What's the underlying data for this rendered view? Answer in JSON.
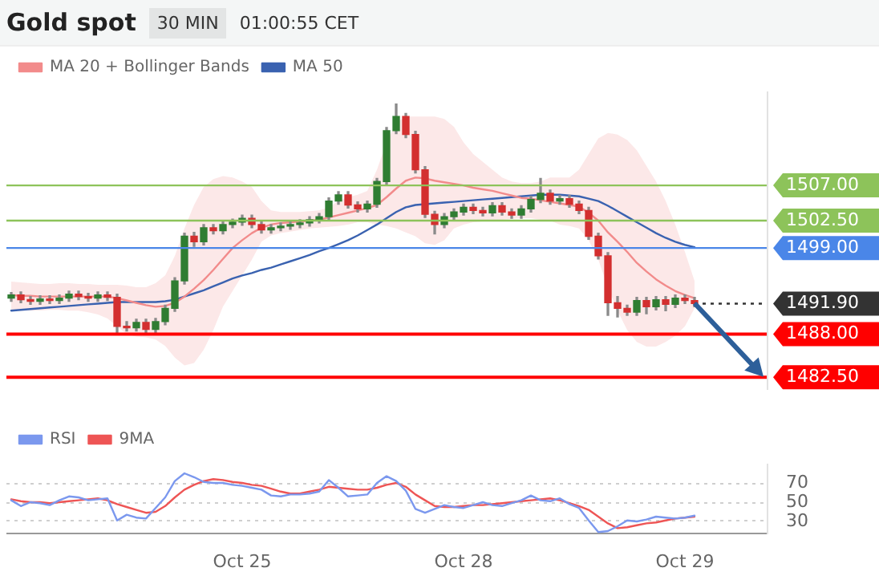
{
  "chart_data": [
    {
      "type": "candlestick",
      "title": "Gold spot",
      "subtitle": "30 MIN",
      "annotations": [
        "01:00:55 CET"
      ],
      "categories": [
        null,
        null,
        null,
        null,
        null,
        null,
        null,
        null,
        null,
        null,
        null,
        null,
        null,
        null,
        null,
        null,
        null,
        null,
        null,
        null,
        null,
        null,
        null,
        null,
        null,
        null,
        null,
        null,
        null,
        null,
        null,
        null,
        null,
        null,
        null,
        null,
        null,
        null,
        null,
        null,
        null,
        null,
        null,
        null,
        null,
        null,
        null,
        null,
        null,
        null,
        null,
        null,
        null,
        null,
        null,
        null,
        null,
        null,
        null,
        null,
        null,
        null,
        null,
        null,
        null,
        null,
        null,
        null,
        null,
        null,
        null,
        null,
        null,
        null,
        null,
        null,
        null,
        null,
        null
      ],
      "ohlc": [
        [
          1492.6,
          1493.3,
          1492.2,
          1493.0
        ],
        [
          1493.0,
          1493.4,
          1492.0,
          1492.4
        ],
        [
          1492.4,
          1492.8,
          1491.8,
          1492.2
        ],
        [
          1492.2,
          1492.9,
          1491.8,
          1492.5
        ],
        [
          1492.5,
          1492.9,
          1491.9,
          1492.3
        ],
        [
          1492.3,
          1493.0,
          1491.9,
          1492.6
        ],
        [
          1492.6,
          1493.5,
          1492.2,
          1493.1
        ],
        [
          1493.1,
          1493.5,
          1492.4,
          1492.8
        ],
        [
          1492.8,
          1493.2,
          1492.2,
          1492.6
        ],
        [
          1492.6,
          1493.4,
          1492.2,
          1493.0
        ],
        [
          1493.0,
          1493.4,
          1492.3,
          1492.7
        ],
        [
          1492.7,
          1493.1,
          1488.2,
          1489.0
        ],
        [
          1489.0,
          1489.6,
          1488.4,
          1488.8
        ],
        [
          1488.8,
          1489.9,
          1488.4,
          1489.5
        ],
        [
          1489.5,
          1489.9,
          1488.0,
          1488.6
        ],
        [
          1488.6,
          1490.0,
          1488.2,
          1489.6
        ],
        [
          1489.6,
          1491.7,
          1489.2,
          1491.3
        ],
        [
          1491.3,
          1495.2,
          1490.9,
          1494.8
        ],
        [
          1494.8,
          1500.9,
          1494.4,
          1500.5
        ],
        [
          1500.5,
          1501.0,
          1499.2,
          1499.8
        ],
        [
          1499.8,
          1502.0,
          1499.4,
          1501.6
        ],
        [
          1501.6,
          1502.0,
          1500.8,
          1501.2
        ],
        [
          1501.2,
          1502.4,
          1500.8,
          1502.0
        ],
        [
          1502.0,
          1502.7,
          1501.6,
          1502.3
        ],
        [
          1502.3,
          1503.2,
          1501.9,
          1502.8
        ],
        [
          1502.8,
          1503.2,
          1501.6,
          1502.0
        ],
        [
          1502.0,
          1502.4,
          1500.9,
          1501.3
        ],
        [
          1501.3,
          1502.0,
          1500.9,
          1501.6
        ],
        [
          1501.6,
          1502.2,
          1501.2,
          1501.8
        ],
        [
          1501.8,
          1502.4,
          1501.4,
          1502.0
        ],
        [
          1502.0,
          1502.6,
          1501.6,
          1502.2
        ],
        [
          1502.2,
          1503.0,
          1501.8,
          1502.6
        ],
        [
          1502.6,
          1503.4,
          1502.2,
          1503.0
        ],
        [
          1503.0,
          1505.4,
          1502.6,
          1505.0
        ],
        [
          1505.0,
          1506.2,
          1504.6,
          1505.8
        ],
        [
          1505.8,
          1506.2,
          1504.1,
          1504.5
        ],
        [
          1504.5,
          1504.9,
          1503.6,
          1504.0
        ],
        [
          1504.0,
          1505.0,
          1503.6,
          1504.6
        ],
        [
          1504.6,
          1507.9,
          1504.2,
          1507.5
        ],
        [
          1507.5,
          1514.4,
          1507.1,
          1514.0
        ],
        [
          1514.0,
          1517.4,
          1513.6,
          1515.8
        ],
        [
          1515.8,
          1516.2,
          1513.1,
          1513.5
        ],
        [
          1513.5,
          1513.9,
          1508.6,
          1509.0
        ],
        [
          1509.0,
          1509.4,
          1502.9,
          1503.3
        ],
        [
          1503.3,
          1503.7,
          1500.8,
          1502.0
        ],
        [
          1502.0,
          1503.4,
          1501.6,
          1503.0
        ],
        [
          1503.0,
          1504.0,
          1502.6,
          1503.6
        ],
        [
          1503.6,
          1504.6,
          1503.2,
          1504.2
        ],
        [
          1504.2,
          1504.6,
          1503.4,
          1503.8
        ],
        [
          1503.8,
          1504.2,
          1503.1,
          1503.5
        ],
        [
          1503.5,
          1504.8,
          1503.1,
          1504.4
        ],
        [
          1504.4,
          1504.8,
          1503.2,
          1503.6
        ],
        [
          1503.6,
          1504.0,
          1502.8,
          1503.2
        ],
        [
          1503.2,
          1504.4,
          1502.8,
          1504.0
        ],
        [
          1504.0,
          1505.6,
          1503.6,
          1505.2
        ],
        [
          1505.2,
          1507.9,
          1504.8,
          1506.0
        ],
        [
          1506.0,
          1506.4,
          1504.6,
          1505.0
        ],
        [
          1505.0,
          1505.7,
          1504.6,
          1505.3
        ],
        [
          1505.3,
          1505.7,
          1504.2,
          1504.6
        ],
        [
          1504.6,
          1505.0,
          1503.4,
          1503.8
        ],
        [
          1503.8,
          1504.2,
          1500.1,
          1500.5
        ],
        [
          1500.5,
          1500.9,
          1497.6,
          1498.0
        ],
        [
          1498.0,
          1498.4,
          1490.4,
          1492.0
        ],
        [
          1492.0,
          1492.8,
          1490.2,
          1491.3
        ],
        [
          1491.3,
          1491.7,
          1490.4,
          1490.8
        ],
        [
          1490.8,
          1492.7,
          1490.4,
          1492.3
        ],
        [
          1492.3,
          1492.7,
          1490.6,
          1491.5
        ],
        [
          1491.5,
          1492.8,
          1491.1,
          1492.4
        ],
        [
          1492.4,
          1492.8,
          1491.0,
          1491.8
        ],
        [
          1491.8,
          1493.0,
          1491.4,
          1492.6
        ],
        [
          1492.6,
          1493.0,
          1491.9,
          1492.3
        ],
        [
          1492.3,
          1492.7,
          1491.5,
          1491.9
        ],
        null,
        null,
        null,
        null,
        null,
        null,
        null
      ],
      "series": [
        {
          "type": "line",
          "name": "MA 20 + Bollinger Bands",
          "color": "#f28b8b",
          "values": [
            1493.0,
            1492.9,
            1492.9,
            1492.8,
            1492.8,
            1492.8,
            1492.8,
            1492.8,
            1492.8,
            1492.8,
            1492.8,
            1492.6,
            1492.3,
            1492.0,
            1491.7,
            1491.5,
            1491.6,
            1492.0,
            1492.8,
            1493.8,
            1494.9,
            1496.2,
            1497.6,
            1499.0,
            1500.0,
            1500.9,
            1501.6,
            1502.0,
            1502.2,
            1502.3,
            1502.4,
            1502.5,
            1502.6,
            1502.9,
            1503.2,
            1503.5,
            1503.8,
            1504.1,
            1504.5,
            1505.5,
            1506.6,
            1507.6,
            1508.0,
            1507.9,
            1507.6,
            1507.4,
            1507.2,
            1507.0,
            1506.7,
            1506.5,
            1506.3,
            1506.0,
            1505.7,
            1505.4,
            1505.3,
            1505.1,
            1504.9,
            1504.7,
            1504.5,
            1504.3,
            1503.5,
            1502.5,
            1501.0,
            1499.8,
            1498.5,
            1497.1,
            1496.0,
            1495.0,
            1494.2,
            1493.5,
            1493.0,
            1492.6,
            null,
            null,
            null,
            null,
            null,
            null,
            null
          ],
          "upper": [
            1494.7,
            1494.6,
            1494.5,
            1494.4,
            1494.4,
            1494.5,
            1494.5,
            1494.4,
            1494.4,
            1494.3,
            1494.3,
            1494.3,
            1494.2,
            1494.0,
            1494.0,
            1494.5,
            1495.5,
            1498.0,
            1501.5,
            1504.5,
            1506.8,
            1507.8,
            1508.2,
            1508.0,
            1507.5,
            1506.8,
            1505.0,
            1503.8,
            1503.6,
            1503.6,
            1503.6,
            1503.7,
            1503.8,
            1504.2,
            1505.0,
            1505.5,
            1505.8,
            1506.3,
            1509.0,
            1512.5,
            1515.0,
            1515.8,
            1515.8,
            1515.8,
            1515.8,
            1515.5,
            1514.5,
            1512.5,
            1511.0,
            1510.0,
            1509.0,
            1508.0,
            1507.5,
            1507.3,
            1507.3,
            1507.5,
            1508.0,
            1508.0,
            1508.0,
            1509.0,
            1511.0,
            1513.0,
            1513.7,
            1513.5,
            1512.8,
            1511.5,
            1509.5,
            1507.5,
            1505.0,
            1502.0,
            1498.5,
            1494.8,
            null,
            null,
            null,
            null,
            null,
            null,
            null
          ],
          "lower": [
            1491.0,
            1491.0,
            1491.0,
            1491.0,
            1491.1,
            1491.1,
            1491.0,
            1491.0,
            1490.8,
            1490.5,
            1490.0,
            1489.0,
            1488.0,
            1487.7,
            1487.6,
            1487.3,
            1486.5,
            1485.0,
            1484.0,
            1484.3,
            1486.0,
            1488.5,
            1491.5,
            1493.5,
            1495.5,
            1497.5,
            1499.8,
            1500.6,
            1500.9,
            1501.1,
            1501.3,
            1501.5,
            1501.6,
            1501.7,
            1501.8,
            1502.0,
            1502.3,
            1502.3,
            1502.0,
            1501.8,
            1501.5,
            1501.0,
            1500.5,
            1499.6,
            1499.4,
            1500.0,
            1501.5,
            1502.0,
            1502.3,
            1502.4,
            1502.5,
            1502.6,
            1502.7,
            1502.8,
            1502.8,
            1502.6,
            1502.5,
            1502.0,
            1501.8,
            1501.5,
            1500.0,
            1497.5,
            1494.0,
            1491.0,
            1488.5,
            1487.0,
            1486.4,
            1486.4,
            1487.0,
            1487.8,
            1489.0,
            1491.3,
            null,
            null,
            null,
            null,
            null,
            null,
            null
          ]
        },
        {
          "type": "line",
          "name": "MA 50",
          "color": "#3a62b0",
          "values": [
            1491.0,
            1491.1,
            1491.2,
            1491.3,
            1491.4,
            1491.5,
            1491.6,
            1491.7,
            1491.8,
            1491.9,
            1492.0,
            1492.1,
            1492.1,
            1492.1,
            1492.1,
            1492.1,
            1492.2,
            1492.4,
            1492.8,
            1493.2,
            1493.6,
            1494.1,
            1494.6,
            1495.1,
            1495.5,
            1495.8,
            1496.2,
            1496.5,
            1496.9,
            1497.3,
            1497.7,
            1498.1,
            1498.6,
            1499.0,
            1499.5,
            1500.0,
            1500.6,
            1501.3,
            1502.0,
            1502.8,
            1503.6,
            1504.2,
            1504.5,
            1504.6,
            1504.7,
            1504.8,
            1504.9,
            1505.0,
            1505.1,
            1505.2,
            1505.3,
            1505.4,
            1505.5,
            1505.6,
            1505.7,
            1505.8,
            1505.8,
            1505.8,
            1505.7,
            1505.6,
            1505.3,
            1505.0,
            1504.4,
            1503.7,
            1503.0,
            1502.3,
            1501.6,
            1500.9,
            1500.3,
            1499.8,
            1499.4,
            1499.1,
            null,
            null,
            null,
            null,
            null,
            null,
            null
          ]
        }
      ],
      "ylim": [
        1481,
        1519
      ],
      "yticks": [
        {
          "value": 1507,
          "label": "1507.00"
        },
        {
          "value": 1502.5,
          "label": "1502.50"
        },
        {
          "value": 1499,
          "label": "1499.00"
        },
        {
          "value": 1491.9,
          "label": "1491.90"
        },
        {
          "value": 1488,
          "label": "1488.00"
        },
        {
          "value": 1482.5,
          "label": "1482.50"
        }
      ],
      "ref_lines": [
        {
          "axis": "y",
          "value": 1507,
          "color": "#8dc35a"
        },
        {
          "axis": "y",
          "value": 1502.5,
          "color": "#8dc35a"
        },
        {
          "axis": "y",
          "value": 1499,
          "color": "#4a86e8"
        },
        {
          "axis": "y",
          "value": 1491.9,
          "color": "#333333",
          "line_style": "dotted"
        },
        {
          "axis": "y",
          "value": 1488,
          "color": "#ff0000"
        },
        {
          "axis": "y",
          "value": 1482.5,
          "color": "#ff0000"
        }
      ],
      "legend": "top left",
      "tick_labels": "y",
      "grid": false
    },
    {
      "type": "line",
      "categories": [
        null,
        null,
        null,
        null,
        null,
        null,
        null,
        null,
        null,
        null,
        null,
        null,
        null,
        null,
        null,
        null,
        null,
        null,
        null,
        null,
        null,
        null,
        null,
        null,
        "Oct 25",
        null,
        null,
        null,
        null,
        null,
        null,
        null,
        null,
        null,
        null,
        null,
        null,
        null,
        null,
        null,
        null,
        null,
        null,
        null,
        null,
        null,
        null,
        "Oct 28",
        null,
        null,
        null,
        null,
        null,
        null,
        null,
        null,
        null,
        null,
        null,
        null,
        null,
        null,
        null,
        null,
        null,
        null,
        null,
        null,
        null,
        null,
        "Oct 29",
        null,
        null,
        null,
        null,
        null,
        null,
        null,
        null
      ],
      "series": [
        {
          "name": "RSI",
          "color": "#7b98ee",
          "values": [
            52,
            46,
            50,
            49,
            47,
            52,
            56,
            55,
            52,
            53,
            54,
            31,
            37,
            34,
            33,
            44,
            55,
            72,
            80,
            76,
            71,
            70,
            70,
            68,
            67,
            65,
            63,
            57,
            56,
            58,
            58,
            59,
            61,
            73,
            65,
            56,
            57,
            58,
            70,
            77,
            72,
            62,
            43,
            39,
            43,
            47,
            45,
            44,
            47,
            50,
            47,
            46,
            49,
            52,
            57,
            52,
            51,
            54,
            48,
            44,
            31,
            19,
            20,
            25,
            31,
            30,
            32,
            35,
            34,
            33,
            34,
            36,
            null,
            null,
            null,
            null,
            null,
            null,
            null
          ]
        },
        {
          "name": "9MA",
          "color": "#ee5555",
          "values": [
            53,
            51,
            50,
            50,
            49,
            50,
            51,
            52,
            53,
            54,
            52,
            48,
            45,
            42,
            39,
            40,
            46,
            55,
            63,
            68,
            72,
            74,
            73,
            71,
            70,
            68,
            67,
            64,
            61,
            59,
            59,
            61,
            63,
            66,
            65,
            64,
            63,
            63,
            65,
            68,
            70,
            66,
            58,
            52,
            46,
            45,
            45,
            46,
            47,
            47,
            48,
            49,
            50,
            51,
            52,
            53,
            54,
            52,
            49,
            46,
            42,
            35,
            28,
            23,
            24,
            26,
            28,
            29,
            31,
            33,
            34,
            35,
            null,
            null,
            null,
            null,
            null,
            null,
            null
          ]
        }
      ],
      "ylim": [
        17,
        90
      ],
      "yticks": [
        30,
        50,
        70
      ],
      "grid": "y",
      "legend": "top left"
    }
  ]
}
